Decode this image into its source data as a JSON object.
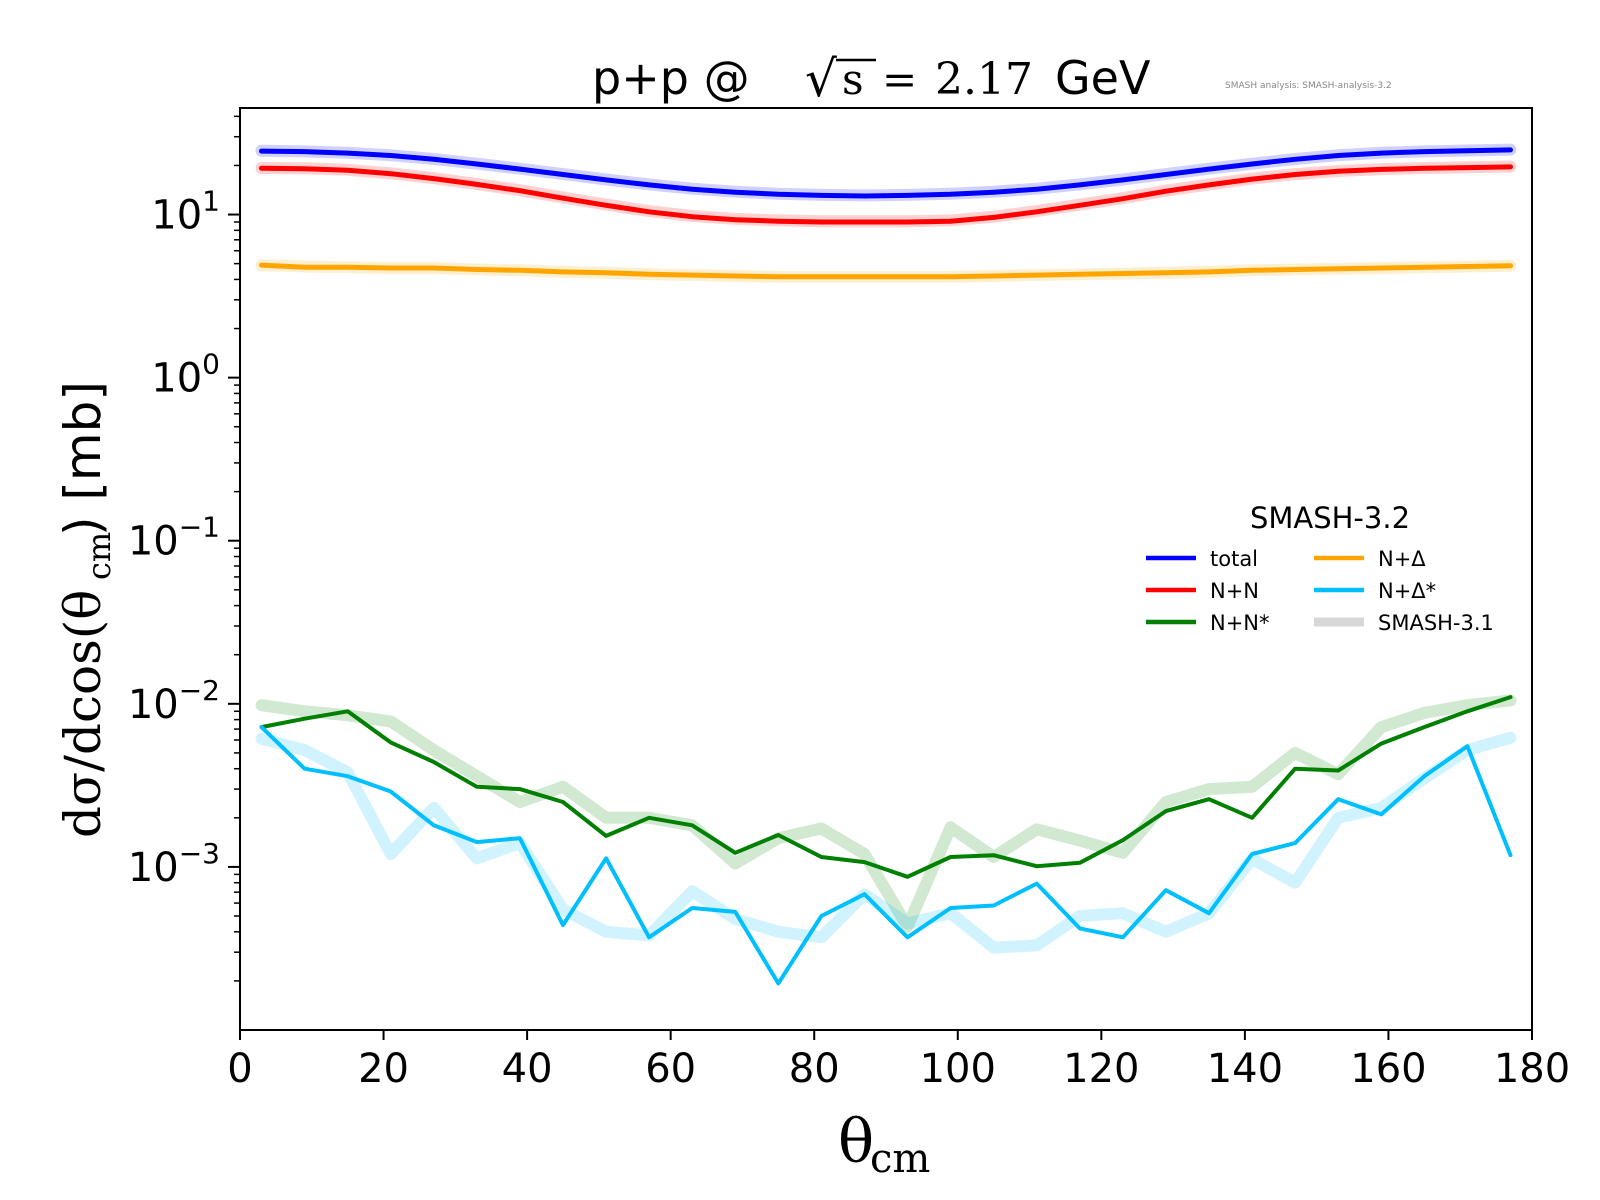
{
  "chart_data": {
    "type": "line",
    "title": {
      "prefix": "p+p @ ",
      "sqrt_sign": "√",
      "sqrt_arg": "s",
      "equals": "=",
      "energy": "2.17",
      "unit": "GeV"
    },
    "watermark": "SMASH analysis: SMASH-analysis-3.2",
    "xlabel": {
      "main": "θ",
      "sub": "cm"
    },
    "ylabel": {
      "a": "dσ/dcos(θ",
      "sub": "cm",
      "b": ") [mb]"
    },
    "xlim": [
      0,
      180
    ],
    "ylim": [
      0.0001,
      45
    ],
    "yscale": "log",
    "xticks": [
      0,
      20,
      40,
      60,
      80,
      100,
      120,
      140,
      160,
      180
    ],
    "yticks": [
      {
        "value": 10,
        "base": "10",
        "exp": "1"
      },
      {
        "value": 1,
        "base": "10",
        "exp": "0"
      },
      {
        "value": 0.1,
        "base": "10",
        "exp": "−1"
      },
      {
        "value": 0.01,
        "base": "10",
        "exp": "−2"
      },
      {
        "value": 0.001,
        "base": "10",
        "exp": "−3"
      }
    ],
    "grid": false,
    "legend": {
      "title": "SMASH-3.2",
      "placement": "center-right",
      "entries": [
        {
          "label": "total",
          "color": "#0000ff",
          "style": "line"
        },
        {
          "label": "N+Δ",
          "color": "#ffa500",
          "style": "line"
        },
        {
          "label": "N+N",
          "color": "#ff0000",
          "style": "line"
        },
        {
          "label": "N+Δ*",
          "color": "#00bfff",
          "style": "line"
        },
        {
          "label": "N+N*",
          "color": "#008000",
          "style": "line"
        },
        {
          "label": "SMASH-3.1",
          "color": "#d3d3d3",
          "style": "band"
        }
      ]
    },
    "x": [
      3,
      9,
      15,
      21,
      27,
      33,
      39,
      45,
      51,
      57,
      63,
      69,
      75,
      81,
      87,
      93,
      99,
      105,
      111,
      117,
      123,
      129,
      135,
      141,
      147,
      153,
      159,
      165,
      171,
      177
    ],
    "series": [
      {
        "name": "total",
        "color": "#0000ff",
        "values": [
          24.5,
          24.3,
          23.8,
          23.0,
          21.8,
          20.4,
          19.0,
          17.6,
          16.3,
          15.2,
          14.3,
          13.7,
          13.3,
          13.1,
          13.0,
          13.1,
          13.3,
          13.7,
          14.3,
          15.2,
          16.3,
          17.6,
          19.0,
          20.4,
          21.8,
          23.0,
          23.8,
          24.3,
          24.6,
          24.9
        ]
      },
      {
        "name": "N+N",
        "color": "#ff0000",
        "values": [
          19.2,
          19.1,
          18.7,
          17.8,
          16.6,
          15.3,
          14.0,
          12.6,
          11.4,
          10.4,
          9.7,
          9.3,
          9.1,
          9.0,
          9.0,
          9.0,
          9.1,
          9.6,
          10.4,
          11.4,
          12.5,
          13.9,
          15.2,
          16.5,
          17.6,
          18.4,
          18.9,
          19.2,
          19.4,
          19.6
        ]
      },
      {
        "name": "N+Δ",
        "color": "#ffa500",
        "values": [
          4.9,
          4.75,
          4.75,
          4.7,
          4.7,
          4.6,
          4.55,
          4.45,
          4.4,
          4.3,
          4.25,
          4.2,
          4.15,
          4.15,
          4.15,
          4.15,
          4.15,
          4.2,
          4.25,
          4.3,
          4.35,
          4.4,
          4.45,
          4.55,
          4.6,
          4.65,
          4.7,
          4.75,
          4.8,
          4.85
        ]
      },
      {
        "name": "N+N*",
        "color": "#008000",
        "values": [
          0.0072,
          0.0081,
          0.009,
          0.0058,
          0.0044,
          0.0031,
          0.003,
          0.0025,
          0.00155,
          0.002,
          0.0018,
          0.00122,
          0.00157,
          0.00115,
          0.00107,
          0.00087,
          0.00115,
          0.00118,
          0.00101,
          0.00106,
          0.00146,
          0.0022,
          0.0026,
          0.002,
          0.004,
          0.0039,
          0.0057,
          0.0072,
          0.009,
          0.011
        ]
      },
      {
        "name": "N+Δ*",
        "color": "#00bfff",
        "values": [
          0.0072,
          0.004,
          0.0036,
          0.0029,
          0.0018,
          0.00142,
          0.0015,
          0.00044,
          0.00113,
          0.00037,
          0.00056,
          0.00053,
          0.000193,
          0.0005,
          0.00068,
          0.00037,
          0.00056,
          0.00058,
          0.00079,
          0.00042,
          0.00037,
          0.00072,
          0.00052,
          0.0012,
          0.0014,
          0.0026,
          0.0021,
          0.0036,
          0.0055,
          0.00118
        ]
      }
    ],
    "reference_series": [
      {
        "color": "#0000ff",
        "values": [
          24.6,
          24.4,
          23.9,
          23.1,
          21.9,
          20.5,
          19.1,
          17.7,
          16.4,
          15.3,
          14.4,
          13.8,
          13.4,
          13.2,
          13.1,
          13.2,
          13.4,
          13.8,
          14.4,
          15.3,
          16.4,
          17.7,
          19.1,
          20.5,
          21.9,
          23.1,
          23.9,
          24.4,
          24.7,
          25.0
        ]
      },
      {
        "color": "#ff0000",
        "values": [
          19.3,
          19.2,
          18.8,
          17.9,
          16.7,
          15.4,
          14.1,
          12.7,
          11.5,
          10.5,
          9.8,
          9.4,
          9.2,
          9.1,
          9.1,
          9.1,
          9.2,
          9.7,
          10.5,
          11.5,
          12.6,
          14.0,
          15.3,
          16.6,
          17.7,
          18.5,
          19.0,
          19.3,
          19.5,
          19.7
        ]
      },
      {
        "color": "#ffa500",
        "values": [
          4.9,
          4.8,
          4.75,
          4.7,
          4.7,
          4.6,
          4.55,
          4.45,
          4.4,
          4.3,
          4.25,
          4.2,
          4.15,
          4.15,
          4.15,
          4.15,
          4.15,
          4.2,
          4.25,
          4.3,
          4.35,
          4.4,
          4.45,
          4.55,
          4.6,
          4.65,
          4.7,
          4.75,
          4.8,
          4.85
        ]
      },
      {
        "color": "#008000",
        "values": [
          0.0098,
          0.009,
          0.0085,
          0.0078,
          0.0052,
          0.0036,
          0.0025,
          0.0031,
          0.002,
          0.002,
          0.0018,
          0.00105,
          0.0015,
          0.00172,
          0.0012,
          0.00043,
          0.00175,
          0.00115,
          0.0017,
          0.00145,
          0.00122,
          0.0025,
          0.003,
          0.0031,
          0.005,
          0.0037,
          0.0072,
          0.0088,
          0.0098,
          0.0105
        ]
      },
      {
        "color": "#00bfff",
        "values": [
          0.0061,
          0.0052,
          0.0038,
          0.0012,
          0.0023,
          0.00113,
          0.0014,
          0.00055,
          0.0004,
          0.00038,
          0.00071,
          0.00048,
          0.0004,
          0.00037,
          0.00068,
          0.00045,
          0.00052,
          0.00032,
          0.00033,
          0.0005,
          0.00052,
          0.0004,
          0.00052,
          0.00112,
          0.0008,
          0.002,
          0.0023,
          0.0035,
          0.0052,
          0.0062
        ]
      }
    ]
  }
}
